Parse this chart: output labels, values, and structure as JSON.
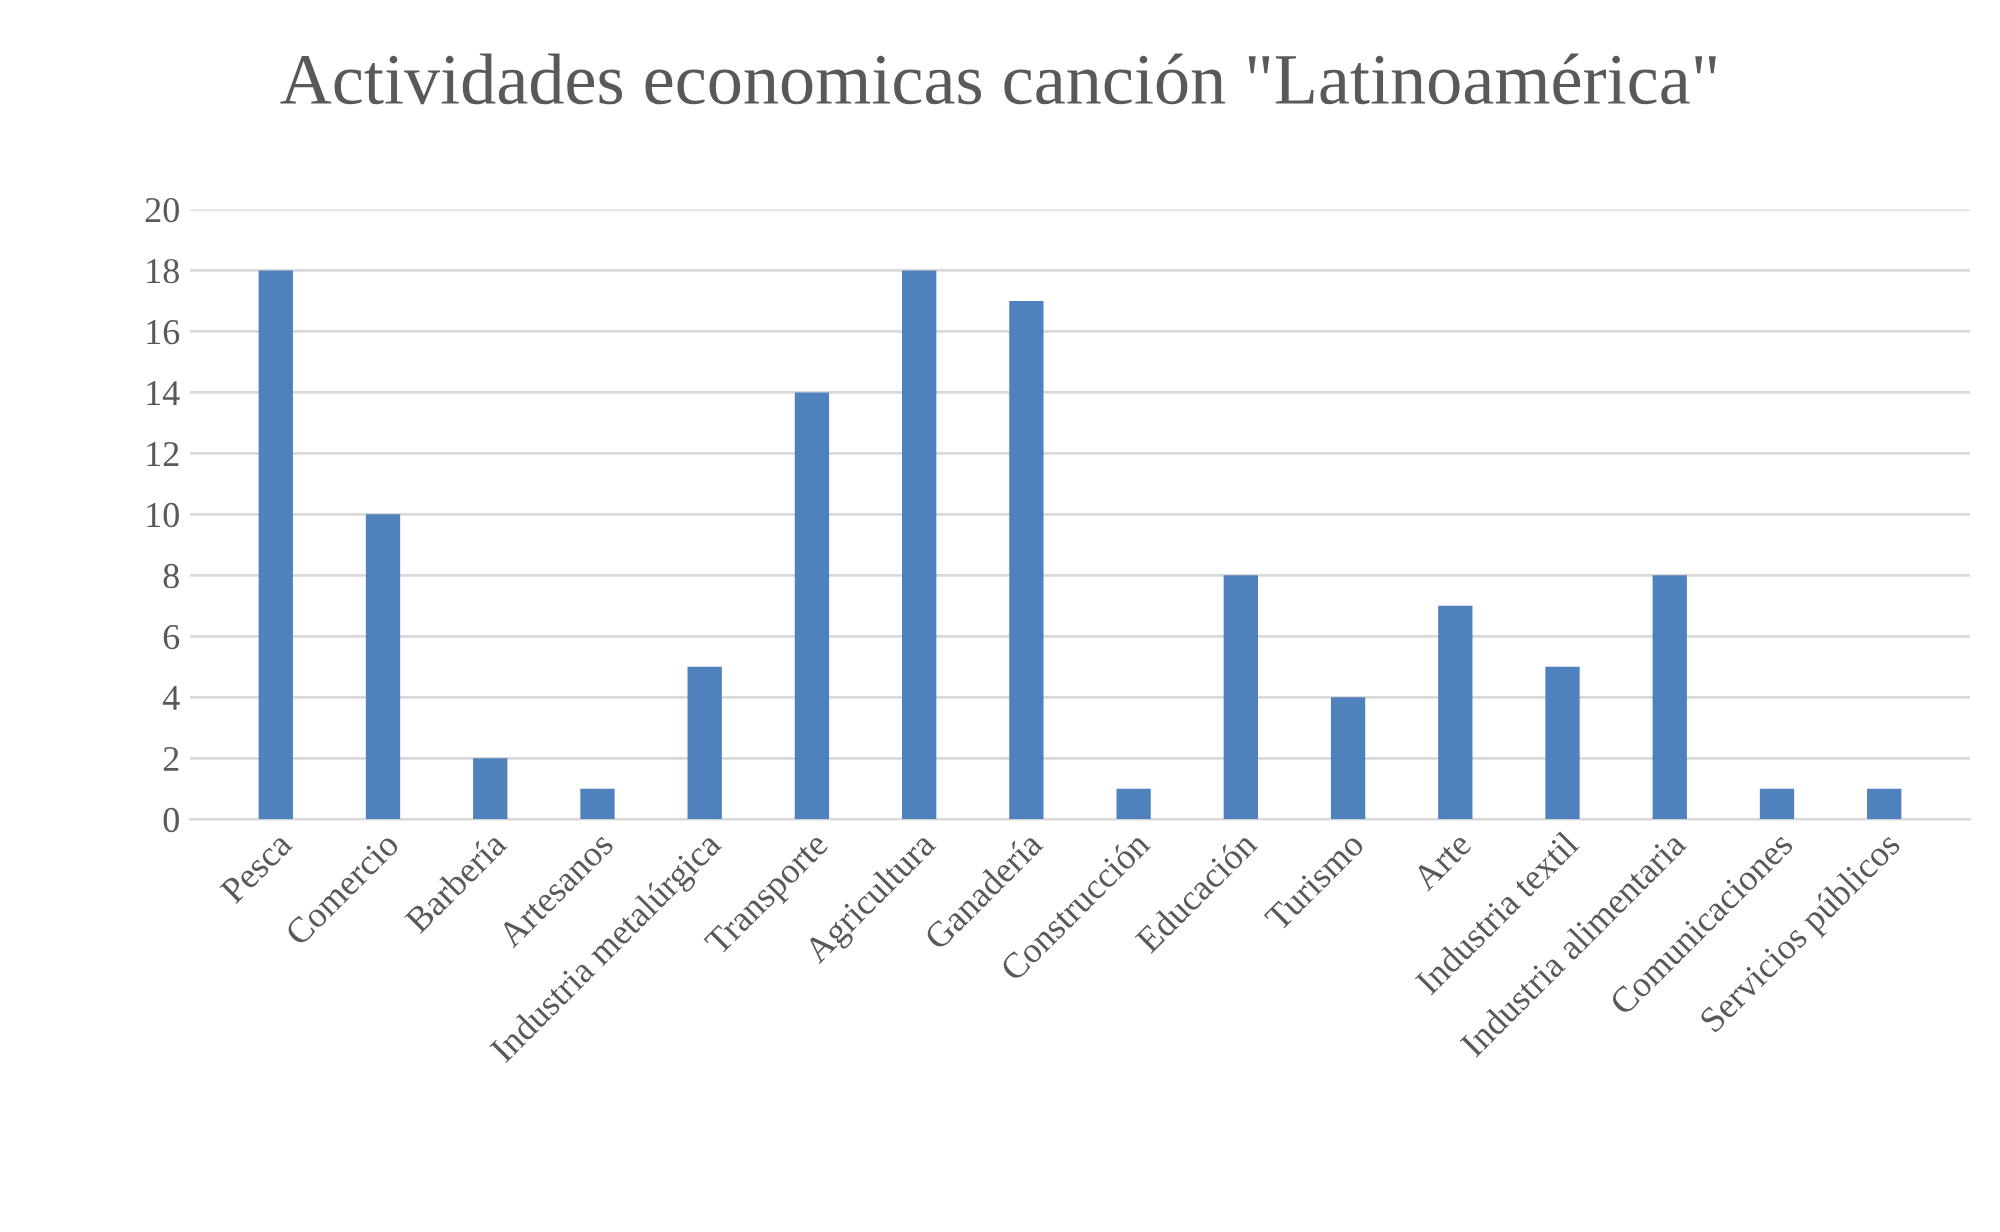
{
  "chart_data": {
    "type": "bar",
    "title": "Actividades economicas canción \"Latinoamérica\"",
    "categories": [
      "Pesca",
      "Comercio",
      "Barbería",
      "Artesanos",
      "Industria metalúrgica",
      "Transporte",
      "Agricultura",
      "Ganadería",
      "Construcción",
      "Educación",
      "Turismo",
      "Arte",
      "Industria textil",
      "Industria alimentaria",
      "Comunicaciones",
      "Servicios públicos"
    ],
    "values": [
      18,
      10,
      2,
      1,
      5,
      14,
      18,
      17,
      1,
      8,
      4,
      7,
      5,
      8,
      1,
      1
    ],
    "color": "#4f81bd",
    "ylim": [
      0,
      20
    ],
    "yticks": [
      0,
      2,
      4,
      6,
      8,
      10,
      12,
      14,
      16,
      18,
      20
    ],
    "grid": "y",
    "legend": false
  }
}
